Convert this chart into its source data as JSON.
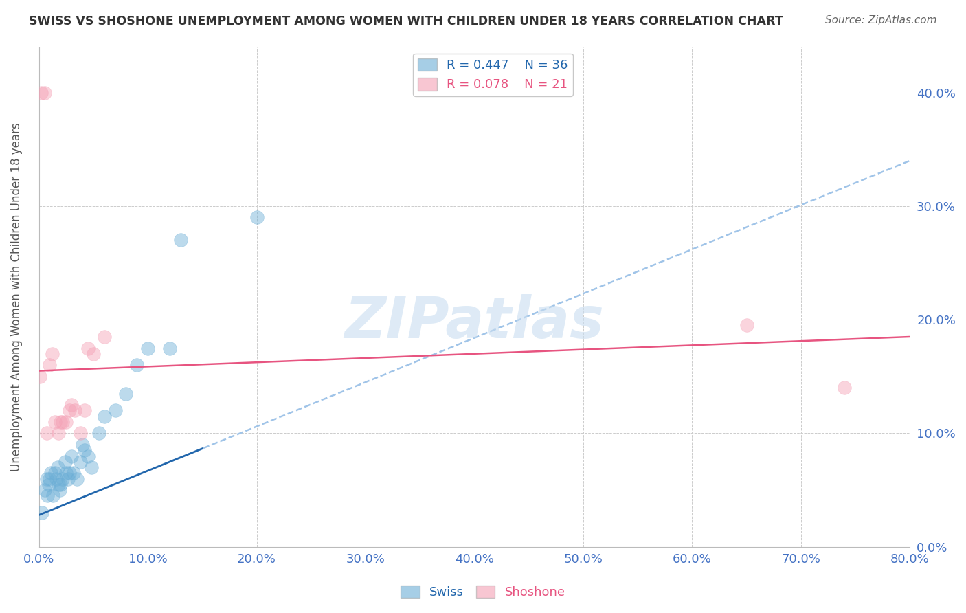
{
  "title": "SWISS VS SHOSHONE UNEMPLOYMENT AMONG WOMEN WITH CHILDREN UNDER 18 YEARS CORRELATION CHART",
  "source": "Source: ZipAtlas.com",
  "ylabel": "Unemployment Among Women with Children Under 18 years",
  "xlim": [
    0.0,
    0.8
  ],
  "ylim": [
    0.0,
    0.44
  ],
  "ytick_vals": [
    0.0,
    0.1,
    0.2,
    0.3,
    0.4
  ],
  "xtick_vals": [
    0.0,
    0.1,
    0.2,
    0.3,
    0.4,
    0.5,
    0.6,
    0.7,
    0.8
  ],
  "swiss_R": 0.447,
  "swiss_N": 36,
  "shoshone_R": 0.078,
  "shoshone_N": 21,
  "swiss_color": "#6baed6",
  "shoshone_color": "#f4a0b5",
  "swiss_line_color": "#2166ac",
  "shoshone_line_color": "#e75480",
  "dashed_line_color": "#a0c4e8",
  "background_color": "#ffffff",
  "grid_color": "#cccccc",
  "title_color": "#333333",
  "tick_color": "#4472c4",
  "swiss_x": [
    0.003,
    0.005,
    0.007,
    0.008,
    0.009,
    0.01,
    0.011,
    0.013,
    0.015,
    0.016,
    0.017,
    0.018,
    0.019,
    0.02,
    0.022,
    0.024,
    0.025,
    0.027,
    0.028,
    0.03,
    0.032,
    0.035,
    0.038,
    0.04,
    0.042,
    0.045,
    0.048,
    0.055,
    0.06,
    0.07,
    0.08,
    0.09,
    0.1,
    0.12,
    0.13,
    0.2
  ],
  "swiss_y": [
    0.03,
    0.05,
    0.06,
    0.045,
    0.055,
    0.06,
    0.065,
    0.045,
    0.065,
    0.06,
    0.07,
    0.055,
    0.05,
    0.055,
    0.06,
    0.075,
    0.065,
    0.06,
    0.065,
    0.08,
    0.065,
    0.06,
    0.075,
    0.09,
    0.085,
    0.08,
    0.07,
    0.1,
    0.115,
    0.12,
    0.135,
    0.16,
    0.175,
    0.175,
    0.27,
    0.29
  ],
  "shoshone_x": [
    0.001,
    0.002,
    0.005,
    0.007,
    0.01,
    0.012,
    0.015,
    0.018,
    0.02,
    0.022,
    0.025,
    0.028,
    0.03,
    0.033,
    0.038,
    0.042,
    0.045,
    0.05,
    0.06,
    0.65,
    0.74
  ],
  "shoshone_y": [
    0.15,
    0.4,
    0.4,
    0.1,
    0.16,
    0.17,
    0.11,
    0.1,
    0.11,
    0.11,
    0.11,
    0.12,
    0.125,
    0.12,
    0.1,
    0.12,
    0.175,
    0.17,
    0.185,
    0.195,
    0.14
  ],
  "watermark_text": "ZIPatlas",
  "watermark_color": "#c8ddf0",
  "swiss_line_start_x": 0.0,
  "swiss_line_start_y": 0.028,
  "swiss_line_end_x": 0.8,
  "swiss_line_end_y": 0.34,
  "shoshone_line_start_x": 0.0,
  "shoshone_line_start_y": 0.155,
  "shoshone_line_end_x": 0.8,
  "shoshone_line_end_y": 0.185
}
